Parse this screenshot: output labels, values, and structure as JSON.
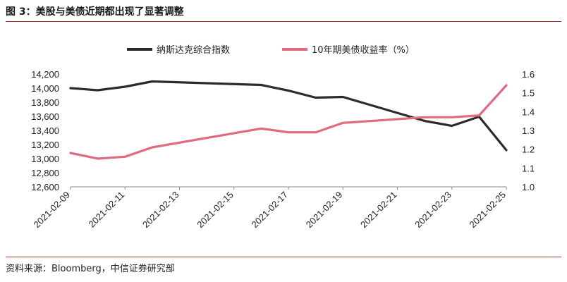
{
  "title": "图 3：美股与美债近期都出现了显著调整",
  "source": "资料来源：Bloomberg，中信证券研究部",
  "colors": {
    "rule": "#9a3c3c",
    "nasdaq": "#2b2b2b",
    "yield": "#e06a80"
  },
  "chart_data": {
    "type": "line",
    "grid": false,
    "legend_position": "top-center",
    "x": [
      "2021-02-09",
      "2021-02-10",
      "2021-02-11",
      "2021-02-12",
      "2021-02-16",
      "2021-02-17",
      "2021-02-18",
      "2021-02-19",
      "2021-02-22",
      "2021-02-23",
      "2021-02-24",
      "2021-02-25"
    ],
    "x_tick_labels": [
      "2021-02-09",
      "2021-02-11",
      "2021-02-13",
      "2021-02-15",
      "2021-02-17",
      "2021-02-19",
      "2021-02-21",
      "2021-02-23",
      "2021-02-25"
    ],
    "y_left": {
      "ylim": [
        12600,
        14200
      ],
      "ticks": [
        "12,600",
        "12,800",
        "13,000",
        "13,200",
        "13,400",
        "13,600",
        "13,800",
        "14,000",
        "14,200"
      ]
    },
    "y_right": {
      "ylim": [
        1.0,
        1.6
      ],
      "ticks": [
        "1.0",
        "1.1",
        "1.2",
        "1.3",
        "1.4",
        "1.5",
        "1.6"
      ]
    },
    "series": [
      {
        "name": "纳斯达克综合指数",
        "axis": "left",
        "color": "#2b2b2b",
        "points": [
          [
            "2021-02-09",
            14000
          ],
          [
            "2021-02-10",
            13970
          ],
          [
            "2021-02-11",
            14020
          ],
          [
            "2021-02-12",
            14095
          ],
          [
            "2021-02-16",
            14045
          ],
          [
            "2021-02-17",
            13965
          ],
          [
            "2021-02-18",
            13865
          ],
          [
            "2021-02-19",
            13875
          ],
          [
            "2021-02-22",
            13535
          ],
          [
            "2021-02-23",
            13465
          ],
          [
            "2021-02-24",
            13595
          ],
          [
            "2021-02-25",
            13120
          ]
        ]
      },
      {
        "name": "10年期美债收益率（%）",
        "axis": "right",
        "color": "#e06a80",
        "points": [
          [
            "2021-02-09",
            1.18
          ],
          [
            "2021-02-10",
            1.15
          ],
          [
            "2021-02-11",
            1.16
          ],
          [
            "2021-02-12",
            1.21
          ],
          [
            "2021-02-16",
            1.31
          ],
          [
            "2021-02-17",
            1.29
          ],
          [
            "2021-02-18",
            1.29
          ],
          [
            "2021-02-19",
            1.34
          ],
          [
            "2021-02-22",
            1.37
          ],
          [
            "2021-02-23",
            1.37
          ],
          [
            "2021-02-24",
            1.38
          ],
          [
            "2021-02-25",
            1.54
          ]
        ]
      }
    ]
  }
}
